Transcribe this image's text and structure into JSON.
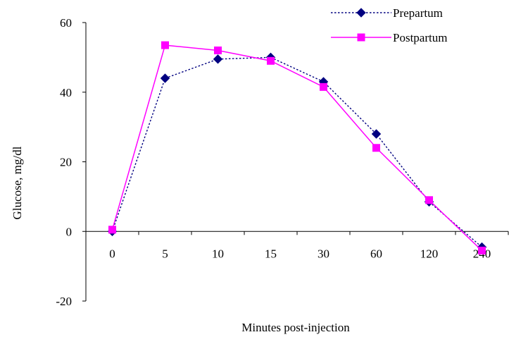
{
  "chart_data": {
    "type": "line",
    "title": "",
    "xlabel": "Minutes post-injection",
    "ylabel": "Glucose, mg/dl",
    "categories": [
      "0",
      "5",
      "10",
      "15",
      "30",
      "60",
      "120",
      "240"
    ],
    "ylim": [
      -20,
      60
    ],
    "yticks": [
      "-20",
      "0",
      "20",
      "40",
      "60"
    ],
    "grid": false,
    "legend_position": "top-right",
    "series": [
      {
        "name": "Prepartum",
        "values": [
          0,
          44,
          49.5,
          50,
          43,
          28,
          8.5,
          -4.5
        ],
        "color": "#000080",
        "line_style": "dotted",
        "marker": "diamond"
      },
      {
        "name": "Postpartum",
        "values": [
          0.5,
          53.5,
          52,
          49,
          41.5,
          24,
          9,
          -5.5
        ],
        "color": "#ff00ff",
        "line_style": "solid",
        "marker": "square"
      }
    ]
  }
}
